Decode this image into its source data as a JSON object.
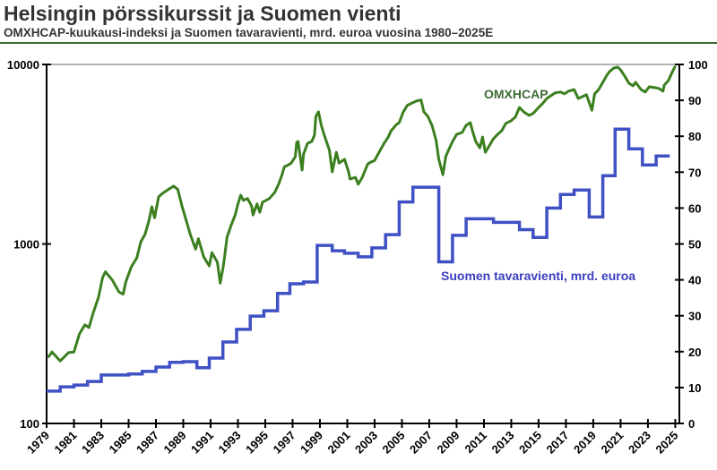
{
  "chart_data": {
    "type": "line",
    "title": "Helsingin pörssikurssit ja Suomen vienti",
    "subtitle": "OMXHCAP-kuukausi-indeksi ja Suomen tavaravienti, mrd. euroa vuosina 1980–2025E",
    "xlim": [
      1979,
      2025.3
    ],
    "x_ticks": [
      "1979",
      "1981",
      "1983",
      "1985",
      "1987",
      "1989",
      "1991",
      "1993",
      "1995",
      "1997",
      "1999",
      "2001",
      "2003",
      "2005",
      "2007",
      "2009",
      "2011",
      "2013",
      "2015",
      "2017",
      "2019",
      "2021",
      "2023",
      "2025"
    ],
    "y_left": {
      "scale": "log",
      "lim": [
        100,
        10000
      ],
      "ticks": [
        "100",
        "1000",
        "10000"
      ]
    },
    "y_right": {
      "scale": "linear",
      "lim": [
        0,
        100
      ],
      "ticks": [
        "0",
        "10",
        "20",
        "30",
        "40",
        "50",
        "60",
        "70",
        "80",
        "90",
        "100"
      ]
    },
    "grid": "top line only",
    "colors": {
      "omxhcap": "#3b7f1f",
      "export": "#3f51c4"
    },
    "series": [
      {
        "name": "OMXHCAP",
        "axis": "left",
        "points": [
          [
            1979.1,
            233
          ],
          [
            1979.4,
            250
          ],
          [
            1980.0,
            223
          ],
          [
            1980.6,
            248
          ],
          [
            1981.0,
            250
          ],
          [
            1981.4,
            315
          ],
          [
            1981.8,
            354
          ],
          [
            1982.1,
            342
          ],
          [
            1982.4,
            410
          ],
          [
            1982.8,
            505
          ],
          [
            1983.1,
            650
          ],
          [
            1983.3,
            700
          ],
          [
            1983.8,
            630
          ],
          [
            1984.3,
            540
          ],
          [
            1984.6,
            525
          ],
          [
            1984.8,
            615
          ],
          [
            1985.2,
            745
          ],
          [
            1985.6,
            835
          ],
          [
            1985.9,
            1030
          ],
          [
            1986.2,
            1130
          ],
          [
            1986.5,
            1360
          ],
          [
            1986.7,
            1610
          ],
          [
            1986.9,
            1400
          ],
          [
            1987.2,
            1830
          ],
          [
            1987.5,
            1920
          ],
          [
            1987.9,
            2010
          ],
          [
            1988.3,
            2100
          ],
          [
            1988.6,
            2010
          ],
          [
            1988.9,
            1630
          ],
          [
            1989.5,
            1140
          ],
          [
            1989.9,
            935
          ],
          [
            1990.1,
            1070
          ],
          [
            1990.5,
            845
          ],
          [
            1990.9,
            755
          ],
          [
            1991.1,
            895
          ],
          [
            1991.5,
            790
          ],
          [
            1991.7,
            605
          ],
          [
            1991.9,
            729
          ],
          [
            1992.0,
            818
          ],
          [
            1992.2,
            1090
          ],
          [
            1992.5,
            1270
          ],
          [
            1992.8,
            1450
          ],
          [
            1993.0,
            1670
          ],
          [
            1993.2,
            1870
          ],
          [
            1993.4,
            1750
          ],
          [
            1993.7,
            1790
          ],
          [
            1994.0,
            1630
          ],
          [
            1994.1,
            1450
          ],
          [
            1994.4,
            1670
          ],
          [
            1994.6,
            1500
          ],
          [
            1994.8,
            1710
          ],
          [
            1995.3,
            1790
          ],
          [
            1995.7,
            1940
          ],
          [
            1996.0,
            2170
          ],
          [
            1996.2,
            2400
          ],
          [
            1996.4,
            2690
          ],
          [
            1996.7,
            2760
          ],
          [
            1996.9,
            2820
          ],
          [
            1997.2,
            3060
          ],
          [
            1997.3,
            3680
          ],
          [
            1997.4,
            3720
          ],
          [
            1997.7,
            2580
          ],
          [
            1997.8,
            3170
          ],
          [
            1998.1,
            3640
          ],
          [
            1998.4,
            3720
          ],
          [
            1998.6,
            4040
          ],
          [
            1998.7,
            5140
          ],
          [
            1998.9,
            5450
          ],
          [
            1999.1,
            4580
          ],
          [
            1999.3,
            4080
          ],
          [
            1999.7,
            3320
          ],
          [
            1999.9,
            2520
          ],
          [
            2000.2,
            3240
          ],
          [
            2000.4,
            2820
          ],
          [
            2000.8,
            2960
          ],
          [
            2001.1,
            2520
          ],
          [
            2001.2,
            2300
          ],
          [
            2001.6,
            2350
          ],
          [
            2001.8,
            2150
          ],
          [
            2002.1,
            2350
          ],
          [
            2002.5,
            2790
          ],
          [
            2002.7,
            2850
          ],
          [
            2003.0,
            2920
          ],
          [
            2003.4,
            3320
          ],
          [
            2003.7,
            3640
          ],
          [
            2004.0,
            3940
          ],
          [
            2004.2,
            4270
          ],
          [
            2004.6,
            4630
          ],
          [
            2004.8,
            4740
          ],
          [
            2005.1,
            5450
          ],
          [
            2005.4,
            5920
          ],
          [
            2005.8,
            6130
          ],
          [
            2006.1,
            6270
          ],
          [
            2006.4,
            6340
          ],
          [
            2006.6,
            5450
          ],
          [
            2006.9,
            5140
          ],
          [
            2007.2,
            4580
          ],
          [
            2007.5,
            3770
          ],
          [
            2007.7,
            2960
          ],
          [
            2008.0,
            2430
          ],
          [
            2008.2,
            3060
          ],
          [
            2008.4,
            3320
          ],
          [
            2008.7,
            3720
          ],
          [
            2009.0,
            4080
          ],
          [
            2009.4,
            4180
          ],
          [
            2009.7,
            4580
          ],
          [
            2010.0,
            4740
          ],
          [
            2010.2,
            4180
          ],
          [
            2010.4,
            3720
          ],
          [
            2010.7,
            3430
          ],
          [
            2010.9,
            3940
          ],
          [
            2011.1,
            3240
          ],
          [
            2011.3,
            3430
          ],
          [
            2011.7,
            3860
          ],
          [
            2012.0,
            4080
          ],
          [
            2012.3,
            4270
          ],
          [
            2012.6,
            4690
          ],
          [
            2013.0,
            4860
          ],
          [
            2013.3,
            5090
          ],
          [
            2013.6,
            5760
          ],
          [
            2013.9,
            5450
          ],
          [
            2014.3,
            5200
          ],
          [
            2014.6,
            5330
          ],
          [
            2014.9,
            5650
          ],
          [
            2015.3,
            6060
          ],
          [
            2015.6,
            6460
          ],
          [
            2015.9,
            6700
          ],
          [
            2016.2,
            6940
          ],
          [
            2016.6,
            7020
          ],
          [
            2016.9,
            6860
          ],
          [
            2017.2,
            7100
          ],
          [
            2017.6,
            7250
          ],
          [
            2017.9,
            6460
          ],
          [
            2018.2,
            6610
          ],
          [
            2018.5,
            6780
          ],
          [
            2018.9,
            5560
          ],
          [
            2019.1,
            6860
          ],
          [
            2019.4,
            7250
          ],
          [
            2019.7,
            7950
          ],
          [
            2020.0,
            8720
          ],
          [
            2020.2,
            9130
          ],
          [
            2020.5,
            9550
          ],
          [
            2020.8,
            9660
          ],
          [
            2021.0,
            9330
          ],
          [
            2021.3,
            8620
          ],
          [
            2021.6,
            7870
          ],
          [
            2021.9,
            7600
          ],
          [
            2022.1,
            7950
          ],
          [
            2022.5,
            7250
          ],
          [
            2022.8,
            7020
          ],
          [
            2023.1,
            7510
          ],
          [
            2023.5,
            7430
          ],
          [
            2023.8,
            7350
          ],
          [
            2024.1,
            7100
          ],
          [
            2024.2,
            7680
          ],
          [
            2024.5,
            8140
          ],
          [
            2024.8,
            9130
          ],
          [
            2025.0,
            9800
          ]
        ]
      },
      {
        "name": "Suomen tavaravienti, mrd. euroa",
        "axis": "right",
        "step": true,
        "end": 2024.6,
        "points": [
          [
            1979.0,
            9.0
          ],
          [
            1980.0,
            10.2
          ],
          [
            1981.0,
            10.7
          ],
          [
            1982.0,
            11.7
          ],
          [
            1983.0,
            13.5
          ],
          [
            1985.0,
            13.8
          ],
          [
            1986.0,
            14.5
          ],
          [
            1987.0,
            15.7
          ],
          [
            1988.0,
            17.0
          ],
          [
            1989.0,
            17.2
          ],
          [
            1990.0,
            15.5
          ],
          [
            1990.9,
            18.2
          ],
          [
            1991.9,
            22.7
          ],
          [
            1992.9,
            26.2
          ],
          [
            1993.9,
            29.9
          ],
          [
            1994.9,
            31.4
          ],
          [
            1995.9,
            36.2
          ],
          [
            1996.8,
            38.9
          ],
          [
            1997.8,
            39.4
          ],
          [
            1998.8,
            49.6
          ],
          [
            1999.9,
            48.1
          ],
          [
            2000.8,
            47.4
          ],
          [
            2001.8,
            46.4
          ],
          [
            2002.8,
            48.9
          ],
          [
            2003.8,
            52.6
          ],
          [
            2004.8,
            61.7
          ],
          [
            2005.8,
            65.8
          ],
          [
            2007.7,
            45.0
          ],
          [
            2008.7,
            52.4
          ],
          [
            2009.7,
            57.0
          ],
          [
            2011.7,
            56.0
          ],
          [
            2013.6,
            54.0
          ],
          [
            2014.6,
            51.8
          ],
          [
            2015.6,
            60.0
          ],
          [
            2016.6,
            63.8
          ],
          [
            2017.6,
            65.0
          ],
          [
            2018.7,
            57.5
          ],
          [
            2019.7,
            69.0
          ],
          [
            2020.6,
            82.0
          ],
          [
            2021.6,
            76.5
          ],
          [
            2022.6,
            72.0
          ],
          [
            2023.6,
            74.5
          ]
        ]
      }
    ],
    "annotations": {
      "omxhcap": "OMXHCAP",
      "export": "Suomen tavaravienti, mrd. euroa"
    }
  }
}
